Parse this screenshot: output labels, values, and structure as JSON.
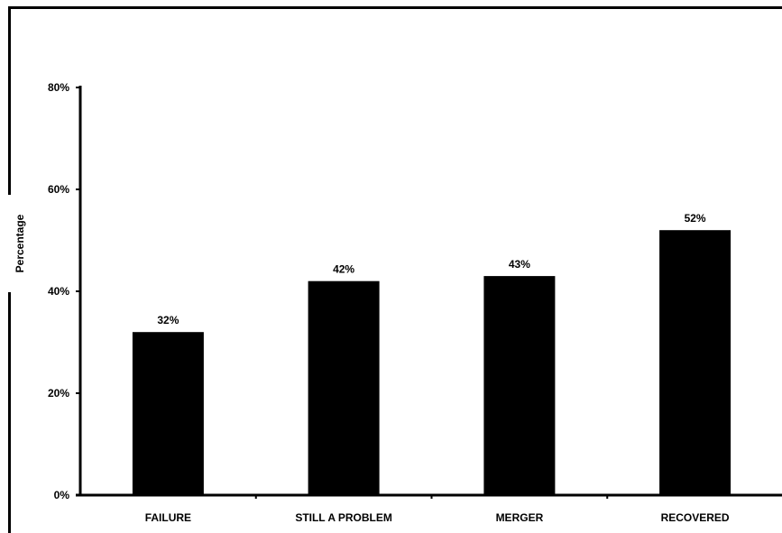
{
  "chart_data": {
    "type": "bar",
    "ylabel": "Percentage",
    "xlabel": "",
    "categories": [
      "FAILURE",
      "STILL A PROBLEM",
      "MERGER",
      "RECOVERED"
    ],
    "values": [
      32,
      42,
      43,
      52
    ],
    "data_labels": [
      "32%",
      "42%",
      "43%",
      "52%"
    ],
    "ylim": [
      0,
      80
    ],
    "yticks": [
      "0%",
      "20%",
      "40%",
      "60%",
      "80%"
    ],
    "grid": false,
    "legend": "none",
    "bar_color": "#000000"
  }
}
